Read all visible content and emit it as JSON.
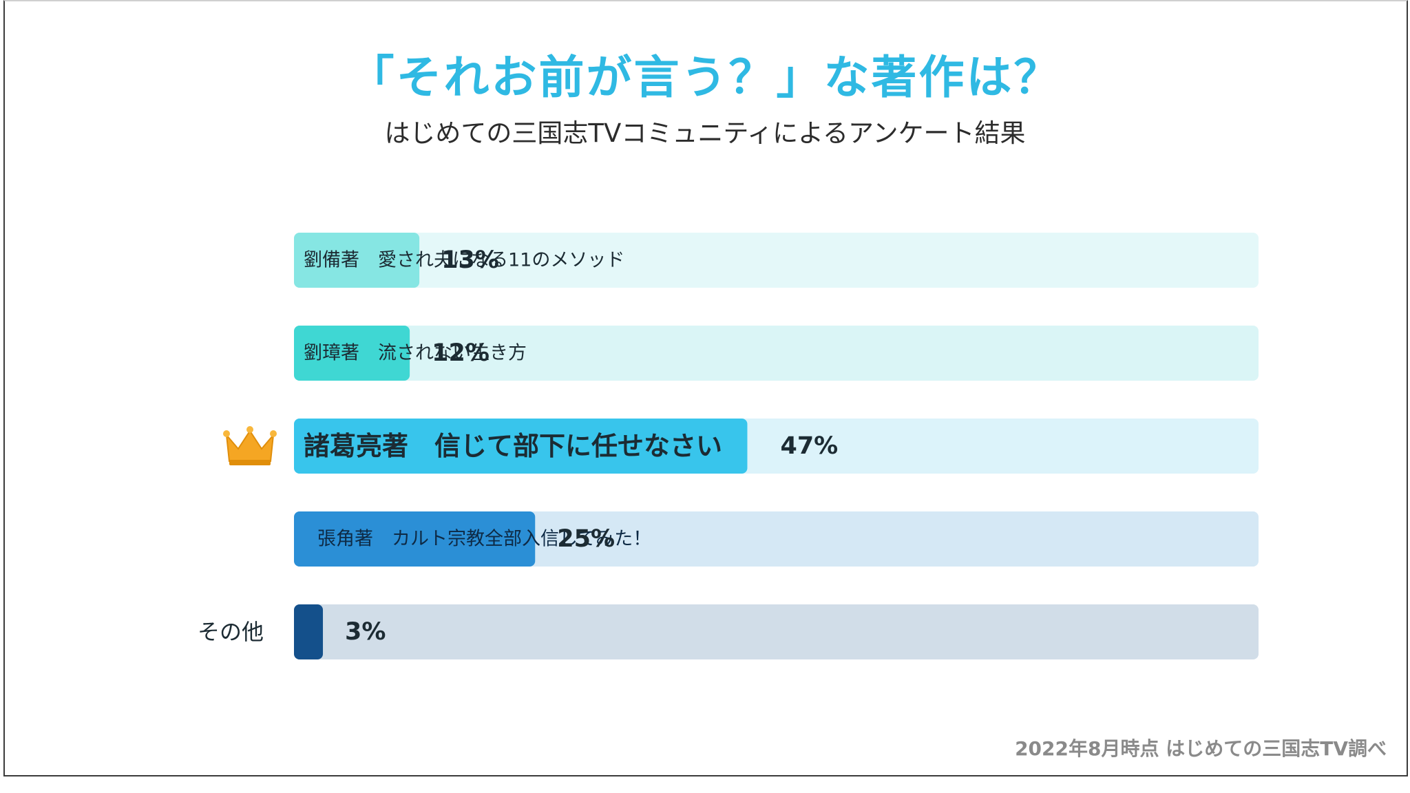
{
  "title": "「それお前が言う？」な著作は？",
  "subtitle": "はじめての三国志TVコミュニティによるアンケート結果",
  "footer": "2022年8月時点 はじめての三国志TV調べ",
  "icons": {
    "top_choice": "crown-icon"
  },
  "chart_data": {
    "type": "bar",
    "orientation": "horizontal",
    "xlim": [
      0,
      100
    ],
    "grid": false,
    "categories": [
      "劉備著　愛され夫になる11のメソッド",
      "劉璋著　流されない生き方",
      "諸葛亮著　信じて部下に任せなさい",
      "張角著　カルト宗教全部入信してみた！",
      "その他"
    ],
    "values": [
      13,
      12,
      47,
      25,
      3
    ],
    "value_labels": [
      "13%",
      "12%",
      "47%",
      "25%",
      "3%"
    ],
    "highlight_index": 2,
    "bar_colors": [
      "#86e6e3",
      "#3fd7d3",
      "#38c5ec",
      "#2b8fd6",
      "#14508b"
    ],
    "track_colors": [
      "#e4f8f9",
      "#daf5f6",
      "#dcf3fa",
      "#d5e8f5",
      "#d1dde8"
    ],
    "crown_color": "#f5a623"
  }
}
